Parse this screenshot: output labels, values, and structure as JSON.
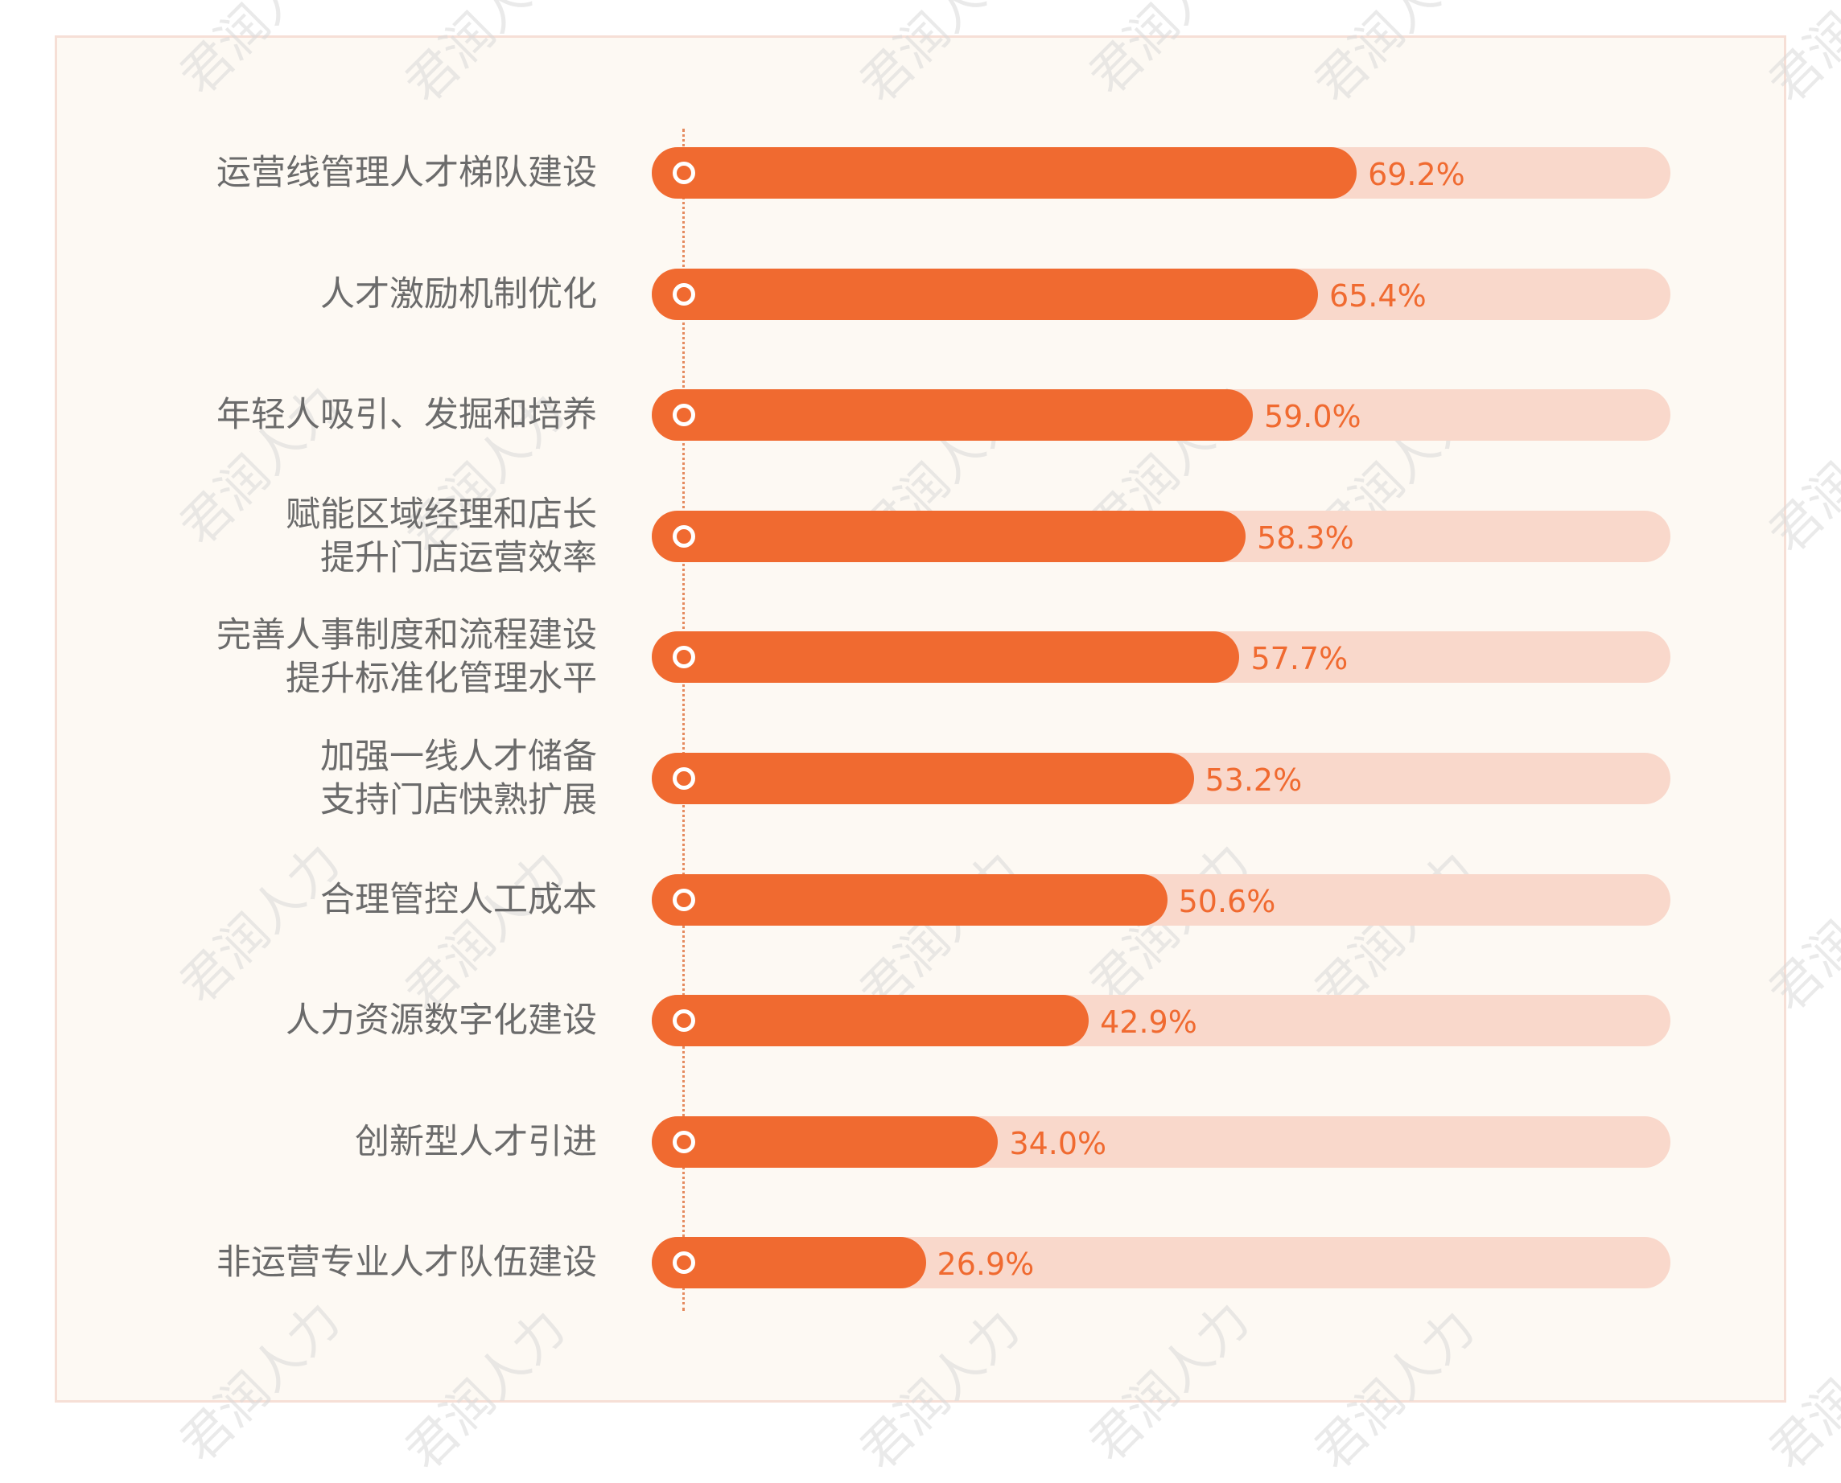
{
  "watermark_text": "君润人力",
  "colors": {
    "bar": "#f06a30",
    "track": "#f9d8cb",
    "label": "#6b6b6b",
    "value": "#f06a30",
    "background": "#fdf9f3"
  },
  "chart_data": {
    "type": "bar",
    "orientation": "horizontal",
    "xlim": [
      0,
      100
    ],
    "unit": "%",
    "categories": [
      "运营线管理人才梯队建设",
      "人才激励机制优化",
      "年轻人吸引、发掘和培养",
      "赋能区域经理和店长\n提升门店运营效率",
      "完善人事制度和流程建设\n提升标准化管理水平",
      "加强一线人才储备\n支持门店快熟扩展",
      "合理管控人工成本",
      "人力资源数字化建设",
      "创新型人才引进",
      "非运营专业人才队伍建设"
    ],
    "values": [
      69.2,
      65.4,
      59.0,
      58.3,
      57.7,
      53.2,
      50.6,
      42.9,
      34.0,
      26.9
    ],
    "value_labels": [
      "69.2%",
      "65.4%",
      "59.0%",
      "58.3%",
      "57.7%",
      "53.2%",
      "50.6%",
      "42.9%",
      "34.0%",
      "26.9%"
    ]
  }
}
